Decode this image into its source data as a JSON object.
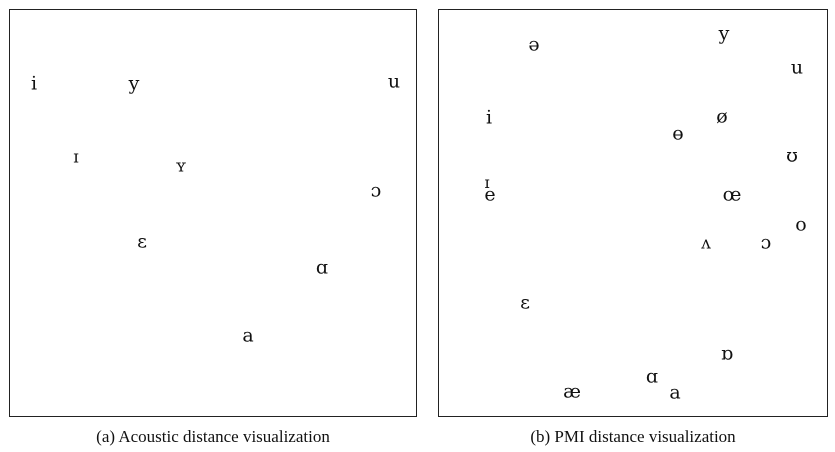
{
  "figure": {
    "panels": [
      {
        "caption": "(a)  Acoustic distance visualization",
        "symbols": [
          "i",
          "y",
          "u",
          "ɪ",
          "ʏ",
          "ɔ",
          "ɛ",
          "ɑ",
          "a"
        ]
      },
      {
        "caption": "(b)  PMI distance visualization",
        "symbols": [
          "ə",
          "y",
          "u",
          "i",
          "ø",
          "ɵ",
          "ʊ",
          "ɪ",
          "e",
          "œ",
          "o",
          "ʌ",
          "ɔ",
          "ɛ",
          "ɒ",
          "ɑ",
          "æ",
          "a"
        ]
      }
    ]
  }
}
